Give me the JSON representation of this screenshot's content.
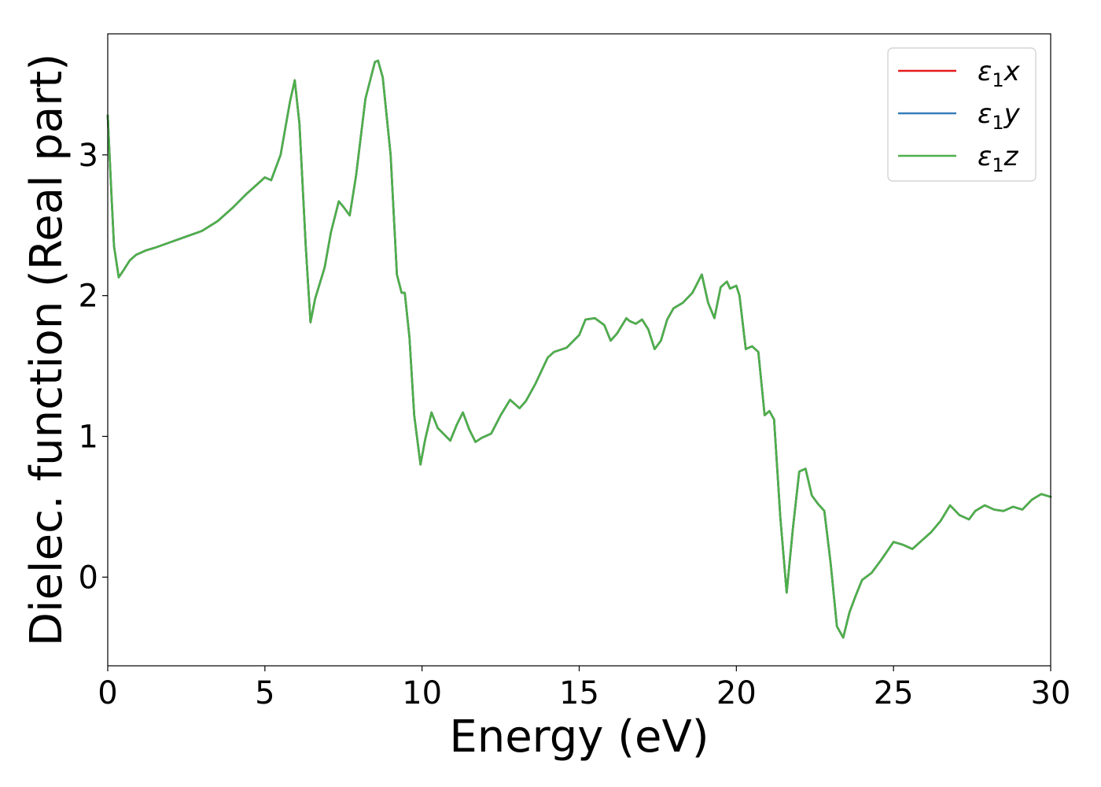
{
  "chart_data": {
    "type": "line",
    "title": "",
    "xlabel": "Energy (eV)",
    "ylabel": "Dielec. function (Real part)",
    "xlim": [
      0,
      30
    ],
    "ylim": [
      -0.63,
      3.86
    ],
    "xticks": [
      0,
      5,
      10,
      15,
      20,
      25,
      30
    ],
    "xtick_labels": [
      "0",
      "5",
      "10",
      "15",
      "20",
      "25",
      "30"
    ],
    "yticks": [
      0,
      1,
      2,
      3
    ],
    "ytick_labels": [
      "0",
      "1",
      "2",
      "3"
    ],
    "grid": false,
    "legend_position": "top-right",
    "series": [
      {
        "name": "ε₁x",
        "name_main": "ε",
        "name_sub": "1",
        "name_var": "x",
        "color": "#e41a1c",
        "x": [
          0,
          0.1,
          0.2,
          0.35,
          0.5,
          0.7,
          0.9,
          1.2,
          1.5,
          2.0,
          2.5,
          3.0,
          3.5,
          4.0,
          4.4,
          4.8,
          5.0,
          5.2,
          5.5,
          5.8,
          5.95,
          6.1,
          6.3,
          6.45,
          6.6,
          6.9,
          7.1,
          7.35,
          7.5,
          7.7,
          7.9,
          8.2,
          8.5,
          8.6,
          8.75,
          9.0,
          9.2,
          9.35,
          9.45,
          9.6,
          9.75,
          9.95,
          10.1,
          10.3,
          10.5,
          10.9,
          11.1,
          11.3,
          11.5,
          11.7,
          11.9,
          12.2,
          12.5,
          12.8,
          13.1,
          13.3,
          13.6,
          14.0,
          14.2,
          14.6,
          15.0,
          15.2,
          15.5,
          15.8,
          16.0,
          16.2,
          16.5,
          16.6,
          16.8,
          17.0,
          17.2,
          17.4,
          17.6,
          17.8,
          18.0,
          18.3,
          18.6,
          18.9,
          19.1,
          19.3,
          19.5,
          19.7,
          19.8,
          20.0,
          20.1,
          20.3,
          20.5,
          20.7,
          20.9,
          21.05,
          21.2,
          21.4,
          21.6,
          21.8,
          22.0,
          22.2,
          22.4,
          22.6,
          22.8,
          23.0,
          23.2,
          23.4,
          23.6,
          23.8,
          24.0,
          24.3,
          24.6,
          25.0,
          25.3,
          25.6,
          25.9,
          26.2,
          26.5,
          26.8,
          27.1,
          27.4,
          27.6,
          27.9,
          28.2,
          28.5,
          28.8,
          29.1,
          29.4,
          29.7,
          30.0
        ],
        "y": [
          3.28,
          2.8,
          2.35,
          2.13,
          2.18,
          2.25,
          2.29,
          2.32,
          2.34,
          2.38,
          2.42,
          2.46,
          2.53,
          2.63,
          2.72,
          2.8,
          2.84,
          2.82,
          3.0,
          3.38,
          3.53,
          3.22,
          2.35,
          1.81,
          1.98,
          2.2,
          2.45,
          2.67,
          2.63,
          2.57,
          2.85,
          3.4,
          3.66,
          3.67,
          3.55,
          3.0,
          2.15,
          2.02,
          2.02,
          1.7,
          1.15,
          0.8,
          0.98,
          1.17,
          1.06,
          0.97,
          1.08,
          1.17,
          1.05,
          0.96,
          0.99,
          1.02,
          1.15,
          1.26,
          1.2,
          1.25,
          1.37,
          1.56,
          1.6,
          1.63,
          1.72,
          1.83,
          1.84,
          1.79,
          1.68,
          1.73,
          1.84,
          1.82,
          1.8,
          1.83,
          1.76,
          1.62,
          1.68,
          1.83,
          1.91,
          1.95,
          2.02,
          2.15,
          1.95,
          1.84,
          2.06,
          2.1,
          2.05,
          2.07,
          2.0,
          1.62,
          1.64,
          1.6,
          1.15,
          1.18,
          1.12,
          0.42,
          -0.11,
          0.35,
          0.75,
          0.77,
          0.58,
          0.52,
          0.47,
          0.1,
          -0.35,
          -0.43,
          -0.25,
          -0.13,
          -0.02,
          0.03,
          0.12,
          0.25,
          0.23,
          0.2,
          0.26,
          0.32,
          0.4,
          0.51,
          0.44,
          0.41,
          0.47,
          0.51,
          0.48,
          0.47,
          0.5,
          0.48,
          0.55,
          0.59,
          0.57
        ]
      },
      {
        "name": "ε₁y",
        "name_main": "ε",
        "name_sub": "1",
        "name_var": "y",
        "color": "#377eb8",
        "x": [
          0,
          0.1,
          0.2,
          0.35,
          0.5,
          0.7,
          0.9,
          1.2,
          1.5,
          2.0,
          2.5,
          3.0,
          3.5,
          4.0,
          4.4,
          4.8,
          5.0,
          5.2,
          5.5,
          5.8,
          5.95,
          6.1,
          6.3,
          6.45,
          6.6,
          6.9,
          7.1,
          7.35,
          7.5,
          7.7,
          7.9,
          8.2,
          8.5,
          8.6,
          8.75,
          9.0,
          9.2,
          9.35,
          9.45,
          9.6,
          9.75,
          9.95,
          10.1,
          10.3,
          10.5,
          10.9,
          11.1,
          11.3,
          11.5,
          11.7,
          11.9,
          12.2,
          12.5,
          12.8,
          13.1,
          13.3,
          13.6,
          14.0,
          14.2,
          14.6,
          15.0,
          15.2,
          15.5,
          15.8,
          16.0,
          16.2,
          16.5,
          16.6,
          16.8,
          17.0,
          17.2,
          17.4,
          17.6,
          17.8,
          18.0,
          18.3,
          18.6,
          18.9,
          19.1,
          19.3,
          19.5,
          19.7,
          19.8,
          20.0,
          20.1,
          20.3,
          20.5,
          20.7,
          20.9,
          21.05,
          21.2,
          21.4,
          21.6,
          21.8,
          22.0,
          22.2,
          22.4,
          22.6,
          22.8,
          23.0,
          23.2,
          23.4,
          23.6,
          23.8,
          24.0,
          24.3,
          24.6,
          25.0,
          25.3,
          25.6,
          25.9,
          26.2,
          26.5,
          26.8,
          27.1,
          27.4,
          27.6,
          27.9,
          28.2,
          28.5,
          28.8,
          29.1,
          29.4,
          29.7,
          30.0
        ],
        "y": [
          3.28,
          2.8,
          2.35,
          2.13,
          2.18,
          2.25,
          2.29,
          2.32,
          2.34,
          2.38,
          2.42,
          2.46,
          2.53,
          2.63,
          2.72,
          2.8,
          2.84,
          2.82,
          3.0,
          3.38,
          3.53,
          3.22,
          2.35,
          1.81,
          1.98,
          2.2,
          2.45,
          2.67,
          2.63,
          2.57,
          2.85,
          3.4,
          3.66,
          3.67,
          3.55,
          3.0,
          2.15,
          2.02,
          2.02,
          1.7,
          1.15,
          0.8,
          0.98,
          1.17,
          1.06,
          0.97,
          1.08,
          1.17,
          1.05,
          0.96,
          0.99,
          1.02,
          1.15,
          1.26,
          1.2,
          1.25,
          1.37,
          1.56,
          1.6,
          1.63,
          1.72,
          1.83,
          1.84,
          1.79,
          1.68,
          1.73,
          1.84,
          1.82,
          1.8,
          1.83,
          1.76,
          1.62,
          1.68,
          1.83,
          1.91,
          1.95,
          2.02,
          2.15,
          1.95,
          1.84,
          2.06,
          2.1,
          2.05,
          2.07,
          2.0,
          1.62,
          1.64,
          1.6,
          1.15,
          1.18,
          1.12,
          0.42,
          -0.11,
          0.35,
          0.75,
          0.77,
          0.58,
          0.52,
          0.47,
          0.1,
          -0.35,
          -0.43,
          -0.25,
          -0.13,
          -0.02,
          0.03,
          0.12,
          0.25,
          0.23,
          0.2,
          0.26,
          0.32,
          0.4,
          0.51,
          0.44,
          0.41,
          0.47,
          0.51,
          0.48,
          0.47,
          0.5,
          0.48,
          0.55,
          0.59,
          0.57
        ]
      },
      {
        "name": "ε₁z",
        "name_main": "ε",
        "name_sub": "1",
        "name_var": "z",
        "color": "#4daf4a",
        "x": [
          0,
          0.1,
          0.2,
          0.35,
          0.5,
          0.7,
          0.9,
          1.2,
          1.5,
          2.0,
          2.5,
          3.0,
          3.5,
          4.0,
          4.4,
          4.8,
          5.0,
          5.2,
          5.5,
          5.8,
          5.95,
          6.1,
          6.3,
          6.45,
          6.6,
          6.9,
          7.1,
          7.35,
          7.5,
          7.7,
          7.9,
          8.2,
          8.5,
          8.6,
          8.75,
          9.0,
          9.2,
          9.35,
          9.45,
          9.6,
          9.75,
          9.95,
          10.1,
          10.3,
          10.5,
          10.9,
          11.1,
          11.3,
          11.5,
          11.7,
          11.9,
          12.2,
          12.5,
          12.8,
          13.1,
          13.3,
          13.6,
          14.0,
          14.2,
          14.6,
          15.0,
          15.2,
          15.5,
          15.8,
          16.0,
          16.2,
          16.5,
          16.6,
          16.8,
          17.0,
          17.2,
          17.4,
          17.6,
          17.8,
          18.0,
          18.3,
          18.6,
          18.9,
          19.1,
          19.3,
          19.5,
          19.7,
          19.8,
          20.0,
          20.1,
          20.3,
          20.5,
          20.7,
          20.9,
          21.05,
          21.2,
          21.4,
          21.6,
          21.8,
          22.0,
          22.2,
          22.4,
          22.6,
          22.8,
          23.0,
          23.2,
          23.4,
          23.6,
          23.8,
          24.0,
          24.3,
          24.6,
          25.0,
          25.3,
          25.6,
          25.9,
          26.2,
          26.5,
          26.8,
          27.1,
          27.4,
          27.6,
          27.9,
          28.2,
          28.5,
          28.8,
          29.1,
          29.4,
          29.7,
          30.0
        ],
        "y": [
          3.28,
          2.8,
          2.35,
          2.13,
          2.18,
          2.25,
          2.29,
          2.32,
          2.34,
          2.38,
          2.42,
          2.46,
          2.53,
          2.63,
          2.72,
          2.8,
          2.84,
          2.82,
          3.0,
          3.38,
          3.53,
          3.22,
          2.35,
          1.81,
          1.98,
          2.2,
          2.45,
          2.67,
          2.63,
          2.57,
          2.85,
          3.4,
          3.66,
          3.67,
          3.55,
          3.0,
          2.15,
          2.02,
          2.02,
          1.7,
          1.15,
          0.8,
          0.98,
          1.17,
          1.06,
          0.97,
          1.08,
          1.17,
          1.05,
          0.96,
          0.99,
          1.02,
          1.15,
          1.26,
          1.2,
          1.25,
          1.37,
          1.56,
          1.6,
          1.63,
          1.72,
          1.83,
          1.84,
          1.79,
          1.68,
          1.73,
          1.84,
          1.82,
          1.8,
          1.83,
          1.76,
          1.62,
          1.68,
          1.83,
          1.91,
          1.95,
          2.02,
          2.15,
          1.95,
          1.84,
          2.06,
          2.1,
          2.05,
          2.07,
          2.0,
          1.62,
          1.64,
          1.6,
          1.15,
          1.18,
          1.12,
          0.42,
          -0.11,
          0.35,
          0.75,
          0.77,
          0.58,
          0.52,
          0.47,
          0.1,
          -0.35,
          -0.43,
          -0.25,
          -0.13,
          -0.02,
          0.03,
          0.12,
          0.25,
          0.23,
          0.2,
          0.26,
          0.32,
          0.4,
          0.51,
          0.44,
          0.41,
          0.47,
          0.51,
          0.48,
          0.47,
          0.5,
          0.48,
          0.55,
          0.59,
          0.57
        ]
      }
    ]
  }
}
